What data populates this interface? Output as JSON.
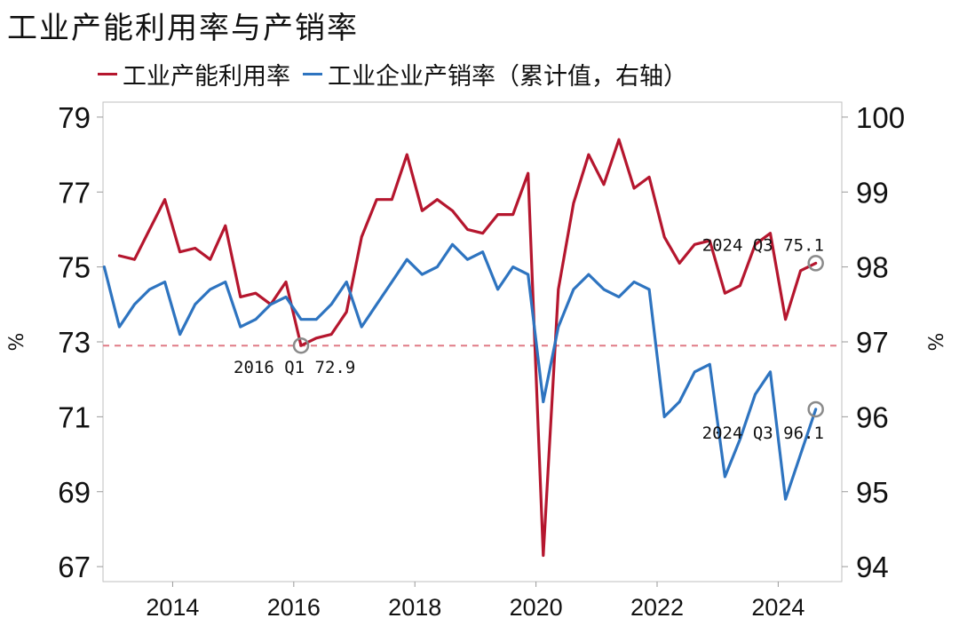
{
  "chart_data": {
    "type": "line",
    "title": "工业产能利用率与产销率",
    "colors": {
      "left_series": "#b5162e",
      "right_series": "#2e74c0",
      "reference_line": "#e07b86",
      "marker": "#8a8a8a"
    },
    "y_left": {
      "label": "%",
      "ticks": [
        67,
        69,
        71,
        73,
        75,
        77,
        79
      ],
      "range": [
        66.6,
        79.4
      ]
    },
    "y_right": {
      "label": "%",
      "ticks": [
        94,
        95,
        96,
        97,
        98,
        99,
        100
      ],
      "range": [
        93.8,
        100.2
      ]
    },
    "x_axis": {
      "ticks": [
        "2014",
        "2016",
        "2018",
        "2020",
        "2022",
        "2024"
      ],
      "range": [
        2012.85,
        2025.05
      ]
    },
    "reference_line": {
      "value": 72.9,
      "axis": "left",
      "style": "dashed"
    },
    "series": [
      {
        "name": "工业产能利用率",
        "axis": "left",
        "x": [
          2013.12,
          2013.37,
          2013.62,
          2013.87,
          2014.12,
          2014.37,
          2014.62,
          2014.87,
          2015.12,
          2015.37,
          2015.62,
          2015.87,
          2016.12,
          2016.37,
          2016.62,
          2016.87,
          2017.12,
          2017.37,
          2017.62,
          2017.87,
          2018.12,
          2018.37,
          2018.62,
          2018.87,
          2019.12,
          2019.37,
          2019.62,
          2019.87,
          2020.12,
          2020.37,
          2020.62,
          2020.87,
          2021.12,
          2021.37,
          2021.62,
          2021.87,
          2022.12,
          2022.37,
          2022.62,
          2022.87,
          2023.12,
          2023.37,
          2023.62,
          2023.87,
          2024.12,
          2024.37,
          2024.62
        ],
        "values": [
          75.3,
          75.2,
          76.0,
          76.8,
          75.4,
          75.5,
          75.2,
          76.1,
          74.2,
          74.3,
          74.0,
          74.6,
          72.9,
          73.1,
          73.2,
          73.8,
          75.8,
          76.8,
          76.8,
          78.0,
          76.5,
          76.8,
          76.5,
          76.0,
          75.9,
          76.4,
          76.4,
          77.5,
          67.3,
          74.4,
          76.7,
          78.0,
          77.2,
          78.4,
          77.1,
          77.4,
          75.8,
          75.1,
          75.6,
          75.7,
          74.3,
          74.5,
          75.6,
          75.9,
          73.6,
          74.9,
          75.1
        ]
      },
      {
        "name": "工业企业产销率（累计值，右轴）",
        "axis": "right",
        "x": [
          2012.87,
          2013.12,
          2013.37,
          2013.62,
          2013.87,
          2014.12,
          2014.37,
          2014.62,
          2014.87,
          2015.12,
          2015.37,
          2015.62,
          2015.87,
          2016.12,
          2016.37,
          2016.62,
          2016.87,
          2017.12,
          2017.37,
          2017.62,
          2017.87,
          2018.12,
          2018.37,
          2018.62,
          2018.87,
          2019.12,
          2019.37,
          2019.62,
          2019.87,
          2020.12,
          2020.37,
          2020.62,
          2020.87,
          2021.12,
          2021.37,
          2021.62,
          2021.87,
          2022.12,
          2022.37,
          2022.62,
          2022.87,
          2023.12,
          2023.37,
          2023.62,
          2023.87,
          2024.12,
          2024.37,
          2024.62
        ],
        "values": [
          98.0,
          97.2,
          97.5,
          97.7,
          97.8,
          97.1,
          97.5,
          97.7,
          97.8,
          97.2,
          97.3,
          97.5,
          97.6,
          97.3,
          97.3,
          97.5,
          97.8,
          97.2,
          97.5,
          97.8,
          98.1,
          97.9,
          98.0,
          98.3,
          98.1,
          98.2,
          97.7,
          98.0,
          97.9,
          96.2,
          97.2,
          97.7,
          97.9,
          97.7,
          97.6,
          97.8,
          97.7,
          96.0,
          96.2,
          96.6,
          96.7,
          95.2,
          95.7,
          96.3,
          96.6,
          94.9,
          95.5,
          96.1
        ]
      }
    ],
    "annotations": [
      {
        "text": "2016 Q1  72.9",
        "x": 2016.12,
        "value": 72.9,
        "axis": "left"
      },
      {
        "text": "2024 Q3  75.1",
        "x": 2024.62,
        "value": 75.1,
        "axis": "left"
      },
      {
        "text": "2024 Q3  96.1",
        "x": 2024.62,
        "value": 96.1,
        "axis": "right"
      }
    ]
  }
}
